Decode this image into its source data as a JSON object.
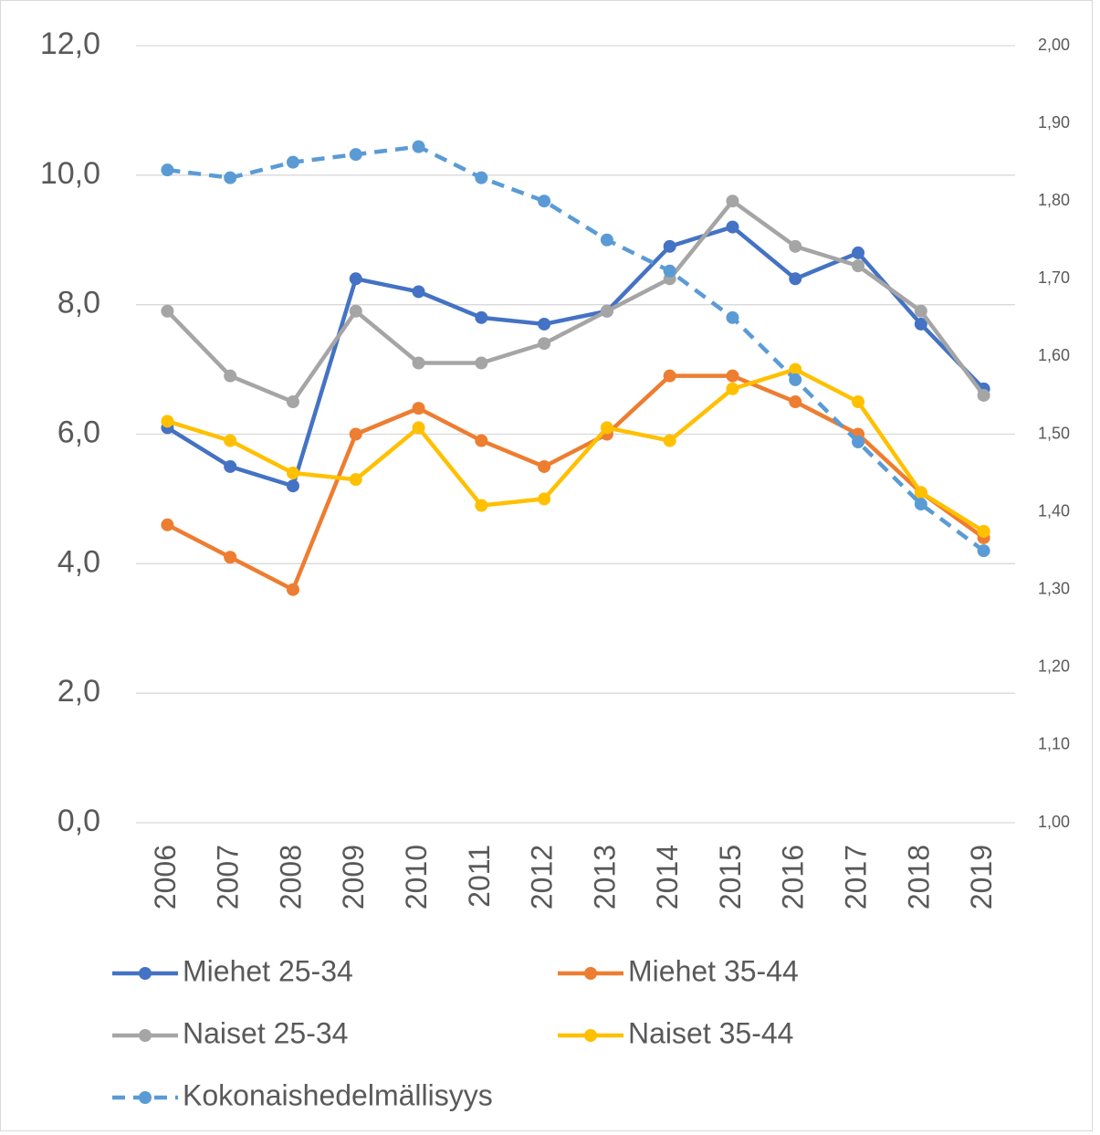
{
  "chart_data": {
    "type": "line",
    "categories": [
      "2006",
      "2007",
      "2008",
      "2009",
      "2010",
      "2011",
      "2012",
      "2013",
      "2014",
      "2015",
      "2016",
      "2017",
      "2018",
      "2019"
    ],
    "series": [
      {
        "name": "Miehet 25-34",
        "color": "#4472c4",
        "values": [
          6.1,
          5.5,
          5.2,
          8.4,
          8.2,
          7.8,
          7.7,
          7.9,
          8.9,
          9.2,
          8.4,
          8.8,
          7.7,
          6.7
        ]
      },
      {
        "name": "Miehet 35-44",
        "color": "#ed7d31",
        "values": [
          4.6,
          4.1,
          3.6,
          6.0,
          6.4,
          5.9,
          5.5,
          6.0,
          6.9,
          6.9,
          6.5,
          6.0,
          5.1,
          4.4
        ]
      },
      {
        "name": "Naiset 25-34",
        "color": "#a5a5a5",
        "values": [
          7.9,
          6.9,
          6.5,
          7.9,
          7.1,
          7.1,
          7.4,
          7.9,
          8.4,
          9.6,
          8.9,
          8.6,
          7.9,
          6.6
        ]
      },
      {
        "name": "Naiset 35-44",
        "color": "#ffc000",
        "values": [
          6.2,
          5.9,
          5.4,
          5.3,
          6.1,
          4.9,
          5.0,
          6.1,
          5.9,
          6.7,
          7.0,
          6.5,
          5.1,
          4.5
        ]
      },
      {
        "name": "Kokonaishedelmällisyys",
        "color": "#5b9bd5",
        "axis": "y2",
        "line_style": "dashed",
        "values": [
          1.84,
          1.83,
          1.85,
          1.86,
          1.87,
          1.83,
          1.8,
          1.75,
          1.71,
          1.65,
          1.57,
          1.49,
          1.41,
          1.35
        ]
      }
    ],
    "ylim": [
      0,
      12
    ],
    "yticks": [
      {
        "value": 0,
        "label": "0,0"
      },
      {
        "value": 2,
        "label": "2,0"
      },
      {
        "value": 4,
        "label": "4,0"
      },
      {
        "value": 6,
        "label": "6,0"
      },
      {
        "value": 8,
        "label": "8,0"
      },
      {
        "value": 10,
        "label": "10,0"
      },
      {
        "value": 12,
        "label": "12,0"
      }
    ],
    "y2lim": [
      1,
      2
    ],
    "y2ticks": [
      {
        "value": 1,
        "label": "1,00"
      },
      {
        "value": 1.1,
        "label": "1,10"
      },
      {
        "value": 1.2,
        "label": "1,20"
      },
      {
        "value": 1.3,
        "label": "1,30"
      },
      {
        "value": 1.4,
        "label": "1,40"
      },
      {
        "value": 1.5,
        "label": "1,50"
      },
      {
        "value": 1.6,
        "label": "1,60"
      },
      {
        "value": 1.7,
        "label": "1,70"
      },
      {
        "value": 1.8,
        "label": "1,80"
      },
      {
        "value": 1.9,
        "label": "1,90"
      },
      {
        "value": 2,
        "label": "2,00"
      }
    ],
    "grid": true,
    "legend": "bottom"
  }
}
